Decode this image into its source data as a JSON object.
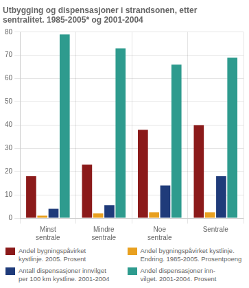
{
  "chart_data": {
    "type": "bar",
    "title": "Utbygging og dispensasjoner i strandsonen, etter\nsentralitet. 1985-2005* og 2001-2004",
    "categories": [
      "Minst\nsentrale",
      "Mindre\nsentrale",
      "Noe\nsentrale",
      "Sentrale"
    ],
    "series": [
      {
        "name": "Andel bygningspåvirket\nkystlinje. 2005. Prosent",
        "color": "#8B1A1A",
        "values": [
          18,
          23,
          38,
          40
        ]
      },
      {
        "name": "Andel bygningspåvirket kystlinje.\nEndring. 1985-2005. Prosentpoeng",
        "color": "#E8A020",
        "values": [
          1.0,
          2.0,
          2.5,
          2.5
        ]
      },
      {
        "name": "Antall dispensasjoner innvilget\nper 100 km kystline. 2001-2004",
        "color": "#1F3B7A",
        "values": [
          4,
          5.5,
          14,
          18
        ]
      },
      {
        "name": "Andel dispensasjoner inn-\nvilget. 2001-2004. Prosent",
        "color": "#2E9B8E",
        "values": [
          79,
          73,
          66,
          69
        ]
      }
    ],
    "ylim": [
      0,
      80
    ],
    "yticks": [
      0,
      10,
      20,
      30,
      40,
      50,
      60,
      70,
      80
    ],
    "grid": true,
    "legend": "bottom"
  }
}
